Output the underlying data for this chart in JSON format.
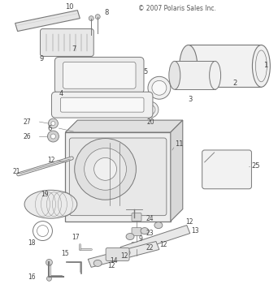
{
  "title": "© 2007 Polaris Sales Inc.",
  "bg": "#ffffff",
  "lc": "#999999",
  "dc": "#777777",
  "tc": "#444444",
  "fig_w": 3.42,
  "fig_h": 3.5,
  "dpi": 100
}
